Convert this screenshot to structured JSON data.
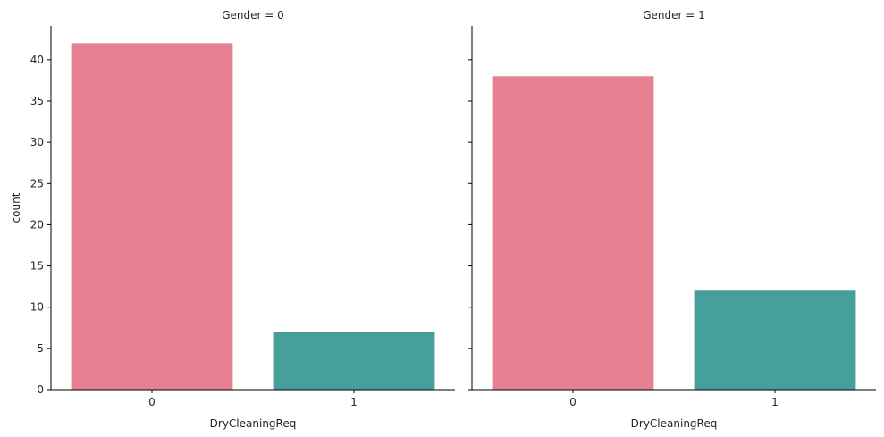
{
  "chart_data": [
    {
      "type": "bar",
      "title": "Gender = 0",
      "xlabel": "DryCleaningReq",
      "ylabel": "count",
      "categories": [
        "0",
        "1"
      ],
      "values": [
        42,
        7
      ],
      "ylim": [
        0,
        44.1
      ],
      "yticks": [
        0,
        5,
        10,
        15,
        20,
        25,
        30,
        35,
        40
      ],
      "grid": false,
      "colors": [
        "#e68193",
        "#479f9b"
      ]
    },
    {
      "type": "bar",
      "title": "Gender = 1",
      "xlabel": "DryCleaningReq",
      "ylabel": "",
      "categories": [
        "0",
        "1"
      ],
      "values": [
        38,
        12
      ],
      "ylim": [
        0,
        44.1
      ],
      "yticks": [
        0,
        5,
        10,
        15,
        20,
        25,
        30,
        35,
        40
      ],
      "show_ytick_labels": false,
      "grid": false,
      "colors": [
        "#e68193",
        "#479f9b"
      ]
    }
  ]
}
